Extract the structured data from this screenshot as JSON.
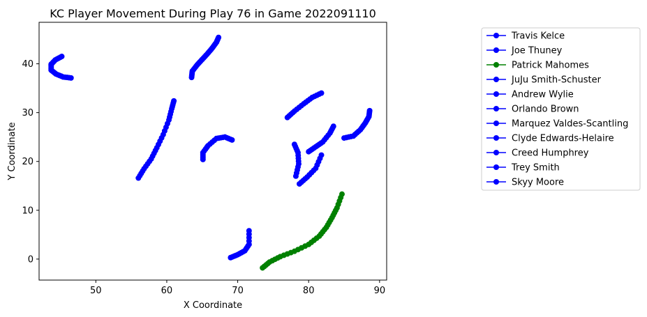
{
  "chart_data": {
    "type": "line",
    "title": "KC Player Movement During Play 76 in Game 2022091110",
    "xlabel": "X Coordinate",
    "ylabel": "Y Coordinate",
    "xlim": [
      42,
      91
    ],
    "ylim": [
      -4.3,
      48.5
    ],
    "xticks": [
      50,
      60,
      70,
      80,
      90
    ],
    "yticks": [
      0,
      10,
      20,
      30,
      40
    ],
    "grid": false,
    "legend_position": "outside-right",
    "colors": {
      "blue": "#0000ff",
      "green": "#008000"
    },
    "series": [
      {
        "name": "Travis Kelce",
        "color": "#0000ff",
        "points": [
          [
            63.5,
            37.2
          ],
          [
            63.6,
            38.5
          ],
          [
            64.3,
            39.8
          ],
          [
            65.0,
            40.9
          ],
          [
            65.7,
            42.0
          ],
          [
            66.4,
            43.2
          ],
          [
            67.0,
            44.4
          ],
          [
            67.3,
            45.4
          ]
        ]
      },
      {
        "name": "Joe Thuney",
        "color": "#0000ff",
        "points": [
          [
            88.6,
            30.4
          ],
          [
            88.5,
            29.2
          ],
          [
            88.0,
            27.9
          ],
          [
            87.3,
            26.5
          ],
          [
            86.3,
            25.2
          ],
          [
            85.0,
            24.8
          ]
        ]
      },
      {
        "name": "Patrick Mahomes",
        "color": "#008000",
        "points": [
          [
            73.5,
            -1.8
          ],
          [
            74.5,
            -0.6
          ],
          [
            76.0,
            0.5
          ],
          [
            78.0,
            1.6
          ],
          [
            80.0,
            3.0
          ],
          [
            81.5,
            4.7
          ],
          [
            82.5,
            6.5
          ],
          [
            83.3,
            8.5
          ],
          [
            84.0,
            10.5
          ],
          [
            84.7,
            13.3
          ]
        ]
      },
      {
        "name": "JuJu Smith-Schuster",
        "color": "#0000ff",
        "points": [
          [
            45.2,
            41.5
          ],
          [
            44.3,
            40.8
          ],
          [
            43.7,
            39.9
          ],
          [
            43.7,
            38.7
          ],
          [
            44.4,
            37.9
          ],
          [
            45.4,
            37.3
          ],
          [
            46.5,
            37.1
          ]
        ]
      },
      {
        "name": "Andrew Wylie",
        "color": "#0000ff",
        "points": [
          [
            77.0,
            29.0
          ],
          [
            78.0,
            30.3
          ],
          [
            79.3,
            31.8
          ],
          [
            80.5,
            33.1
          ],
          [
            81.8,
            34.0
          ]
        ]
      },
      {
        "name": "Orlando Brown",
        "color": "#0000ff",
        "points": [
          [
            69.2,
            24.4
          ],
          [
            68.2,
            25.0
          ],
          [
            67.0,
            24.7
          ],
          [
            65.8,
            23.2
          ],
          [
            65.1,
            21.8
          ],
          [
            65.1,
            20.4
          ]
        ]
      },
      {
        "name": "Marquez Valdes-Scantling",
        "color": "#0000ff",
        "points": [
          [
            56.0,
            16.6
          ],
          [
            56.8,
            18.5
          ],
          [
            57.8,
            20.5
          ],
          [
            58.6,
            22.8
          ],
          [
            59.5,
            25.5
          ],
          [
            60.3,
            28.5
          ],
          [
            60.7,
            30.8
          ],
          [
            61.0,
            32.4
          ]
        ]
      },
      {
        "name": "Clyde Edwards-Helaire",
        "color": "#0000ff",
        "points": [
          [
            69.0,
            0.3
          ],
          [
            70.0,
            0.9
          ],
          [
            71.0,
            1.7
          ],
          [
            71.6,
            3.0
          ],
          [
            71.6,
            5.8
          ]
        ]
      },
      {
        "name": "Creed Humphrey",
        "color": "#0000ff",
        "points": [
          [
            78.0,
            23.5
          ],
          [
            78.5,
            21.8
          ],
          [
            78.6,
            19.5
          ],
          [
            78.2,
            17.0
          ]
        ]
      },
      {
        "name": "Trey Smith",
        "color": "#0000ff",
        "points": [
          [
            78.7,
            15.4
          ],
          [
            79.8,
            16.8
          ],
          [
            81.0,
            18.6
          ],
          [
            81.8,
            21.3
          ]
        ]
      },
      {
        "name": "Skyy Moore",
        "color": "#0000ff",
        "points": [
          [
            80.0,
            22.0
          ],
          [
            81.0,
            23.0
          ],
          [
            82.0,
            24.0
          ],
          [
            83.0,
            25.8
          ],
          [
            83.5,
            27.2
          ]
        ]
      }
    ]
  }
}
